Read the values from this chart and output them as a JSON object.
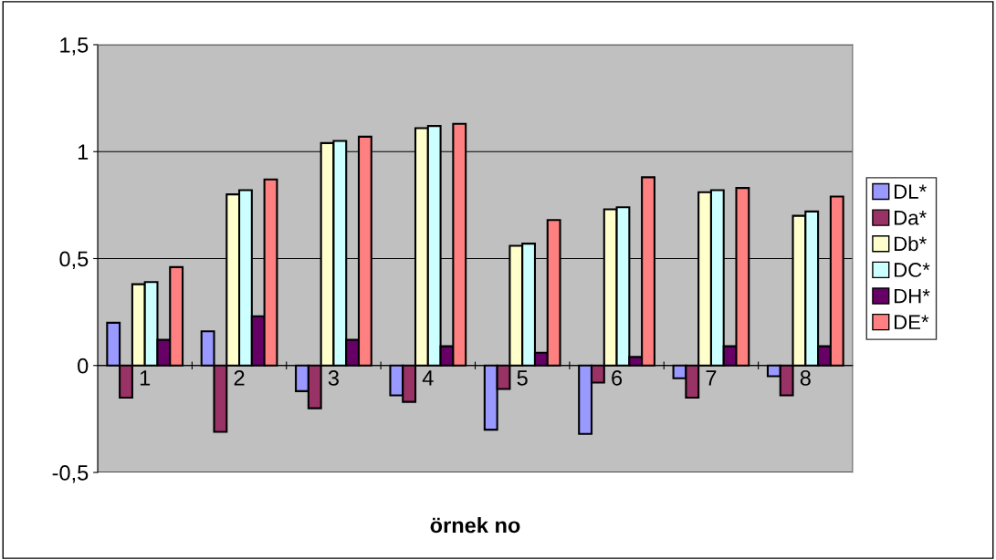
{
  "chart_data": {
    "type": "bar",
    "xlabel": "örnek no",
    "categories": [
      "1",
      "2",
      "3",
      "4",
      "5",
      "6",
      "7",
      "8"
    ],
    "series": [
      {
        "name": "DL*",
        "color": "#9999ff",
        "values": [
          0.2,
          0.16,
          -0.12,
          -0.14,
          -0.3,
          -0.32,
          -0.06,
          -0.05
        ]
      },
      {
        "name": "Da*",
        "color": "#993366",
        "values": [
          -0.15,
          -0.31,
          -0.2,
          -0.17,
          -0.11,
          -0.08,
          -0.15,
          -0.14
        ]
      },
      {
        "name": "Db*",
        "color": "#ffffcc",
        "values": [
          0.38,
          0.8,
          1.04,
          1.11,
          0.56,
          0.73,
          0.81,
          0.7
        ]
      },
      {
        "name": "DC*",
        "color": "#ccffff",
        "values": [
          0.39,
          0.82,
          1.05,
          1.12,
          0.57,
          0.74,
          0.82,
          0.72
        ]
      },
      {
        "name": "DH*",
        "color": "#660066",
        "values": [
          0.12,
          0.23,
          0.12,
          0.09,
          0.06,
          0.04,
          0.09,
          0.09
        ]
      },
      {
        "name": "DE*",
        "color": "#ff8080",
        "values": [
          0.46,
          0.87,
          1.07,
          1.13,
          0.68,
          0.88,
          0.83,
          0.79
        ]
      }
    ],
    "ylim": [
      -0.5,
      1.5
    ],
    "yticks": [
      {
        "value": -0.5,
        "label": "-0,5"
      },
      0,
      {
        "value": 0.5,
        "label": "0,5"
      },
      1,
      {
        "value": 1.5,
        "label": "1,5"
      }
    ],
    "grid": "y",
    "legend": "right"
  }
}
